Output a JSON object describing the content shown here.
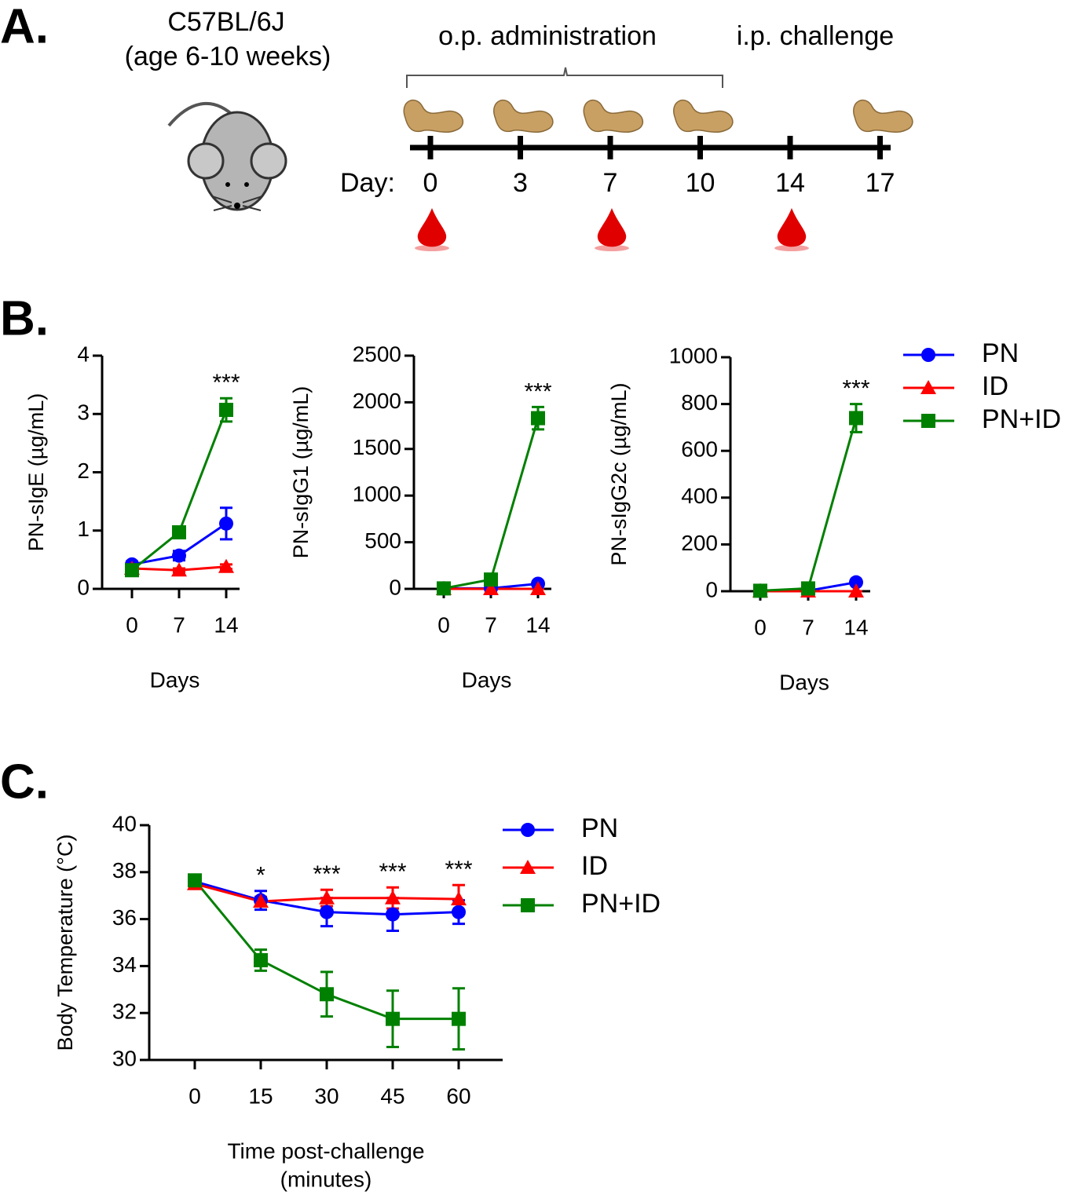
{
  "panel_labels": [
    "A.",
    "B.",
    "C."
  ],
  "panel_a": {
    "strain": "C57BL/6J",
    "age": "(age 6-10 weeks)",
    "administration": "o.p. administration",
    "challenge": "i.p. challenge",
    "day_label": "Day:",
    "days": [
      "0",
      "3",
      "7",
      "10",
      "14",
      "17"
    ]
  },
  "chart_data": [
    {
      "type": "line",
      "ylabel": "PN-sIgE (µg/mL)",
      "xlabel": [
        "Days"
      ],
      "categories": [
        "0",
        "7",
        "14"
      ],
      "ylim": [
        0,
        4
      ],
      "yticks": [
        0,
        1,
        2,
        3,
        4
      ],
      "series": [
        {
          "name": "PN",
          "color": "#0000ff",
          "marker": "circle",
          "values": [
            0.42,
            0.57,
            1.12
          ],
          "errors": [
            0.05,
            0.08,
            0.27
          ]
        },
        {
          "name": "ID",
          "color": "#ff0000",
          "marker": "triangle",
          "values": [
            0.35,
            0.32,
            0.38
          ],
          "errors": [
            0.03,
            0.03,
            0.04
          ]
        },
        {
          "name": "PN+ID",
          "color": "#008000",
          "marker": "square",
          "values": [
            0.32,
            0.97,
            3.07
          ],
          "errors": [
            0.03,
            0.05,
            0.2
          ]
        }
      ],
      "annotations": [
        null,
        null,
        "***"
      ],
      "legend": false
    },
    {
      "type": "line",
      "ylabel": "PN-sIgG1 (µg/mL)",
      "xlabel": [
        "Days"
      ],
      "categories": [
        "0",
        "7",
        "14"
      ],
      "ylim": [
        0,
        2500
      ],
      "yticks": [
        0,
        500,
        1000,
        1500,
        2000,
        2500
      ],
      "series": [
        {
          "name": "PN",
          "color": "#0000ff",
          "marker": "circle",
          "values": [
            5,
            5,
            55
          ],
          "errors": [
            2,
            2,
            10
          ]
        },
        {
          "name": "ID",
          "color": "#ff0000",
          "marker": "triangle",
          "values": [
            0,
            0,
            0
          ],
          "errors": [
            0,
            0,
            0
          ]
        },
        {
          "name": "PN+ID",
          "color": "#008000",
          "marker": "square",
          "values": [
            5,
            100,
            1830
          ],
          "errors": [
            2,
            10,
            120
          ]
        }
      ],
      "annotations": [
        null,
        null,
        "***"
      ],
      "legend": false
    },
    {
      "type": "line",
      "ylabel": "PN-sIgG2c (µg/mL)",
      "xlabel": [
        "Days"
      ],
      "categories": [
        "0",
        "7",
        "14"
      ],
      "ylim": [
        0,
        1000
      ],
      "yticks": [
        0,
        200,
        400,
        600,
        800,
        1000
      ],
      "series": [
        {
          "name": "PN",
          "color": "#0000ff",
          "marker": "circle",
          "values": [
            2,
            2,
            38
          ],
          "errors": [
            1,
            1,
            5
          ]
        },
        {
          "name": "ID",
          "color": "#ff0000",
          "marker": "triangle",
          "values": [
            0,
            0,
            0
          ],
          "errors": [
            0,
            0,
            0
          ]
        },
        {
          "name": "PN+ID",
          "color": "#008000",
          "marker": "square",
          "values": [
            2,
            12,
            740
          ],
          "errors": [
            1,
            3,
            60
          ]
        }
      ],
      "annotations": [
        null,
        null,
        "***"
      ],
      "legend": true
    },
    {
      "type": "line",
      "ylabel": "Body Temperature (°C)",
      "xlabel": [
        "Time post-challenge",
        "(minutes)"
      ],
      "categories": [
        "0",
        "15",
        "30",
        "45",
        "60"
      ],
      "ylim": [
        30,
        40
      ],
      "yticks": [
        30,
        32,
        34,
        36,
        38,
        40
      ],
      "series": [
        {
          "name": "PN",
          "color": "#0000ff",
          "marker": "circle",
          "values": [
            37.6,
            36.8,
            36.3,
            36.2,
            36.3
          ],
          "errors": [
            0.1,
            0.4,
            0.6,
            0.7,
            0.5
          ]
        },
        {
          "name": "ID",
          "color": "#ff0000",
          "marker": "triangle",
          "values": [
            37.5,
            36.75,
            36.9,
            36.9,
            36.85
          ],
          "errors": [
            0.1,
            0.2,
            0.35,
            0.45,
            0.6
          ]
        },
        {
          "name": "PN+ID",
          "color": "#008000",
          "marker": "square",
          "values": [
            37.65,
            34.25,
            32.8,
            31.75,
            31.75
          ],
          "errors": [
            0.1,
            0.45,
            0.95,
            1.2,
            1.3
          ]
        }
      ],
      "annotations": [
        null,
        "*",
        "***",
        "***",
        "***"
      ],
      "legend": true
    }
  ]
}
